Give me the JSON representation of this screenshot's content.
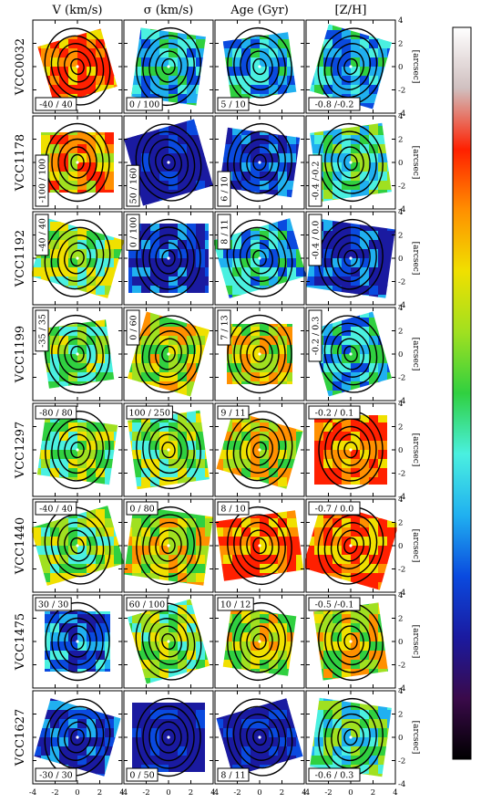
{
  "chart_data": {
    "type": "heatmap",
    "columns": [
      "V (km/s)",
      "σ (km/s)",
      "Age (Gyr)",
      "[Z/H]"
    ],
    "rows": [
      "VCC0032",
      "VCC1178",
      "VCC1192",
      "VCC1199",
      "VCC1297",
      "VCC1440",
      "VCC1475",
      "VCC1627"
    ],
    "ranges": [
      [
        "-40 / 40",
        "0 / 100",
        "5 / 10",
        "-0.8 /-0.2"
      ],
      [
        "-100 / 100",
        "50 / 160",
        "6 / 10",
        "-0.4 /-0.2"
      ],
      [
        "-40 / 40",
        "0 / 100",
        "8 / 11",
        "-0.4 / 0.0"
      ],
      [
        "-35 / 35",
        "0 / 60",
        "7 / 13",
        "-0.2 / 0.3"
      ],
      [
        "-80 / 80",
        "100 / 250",
        "9 / 11",
        "-0.2 / 0.1"
      ],
      [
        "-40 / 40",
        "0 / 80",
        "8 / 10",
        "-0.7 / 0.0"
      ],
      [
        "30 / 30",
        "60 / 100",
        "10 / 12",
        "-0.5 /-0.1"
      ],
      [
        "-30 / 30",
        "0 / 50",
        "8 / 11",
        "-0.6 / 0.3"
      ]
    ],
    "x_ticks": [
      "-4",
      "-2",
      "0",
      "2",
      "4"
    ],
    "y_ticks": [
      "4",
      "2",
      "0",
      "-2",
      "-4"
    ],
    "xlabel": "[arcsec]",
    "ylabel": "[arcsec]",
    "xlim": [
      -4,
      4
    ],
    "ylim": [
      -4,
      4
    ],
    "colormap": [
      "#000000",
      "#3a0a4a",
      "#1a1aa0",
      "#0a4adf",
      "#20b0f0",
      "#4af0e0",
      "#30d040",
      "#a0e020",
      "#f0e000",
      "#ff9000",
      "#ff2000",
      "#d0c0c0",
      "#ffffff"
    ]
  }
}
